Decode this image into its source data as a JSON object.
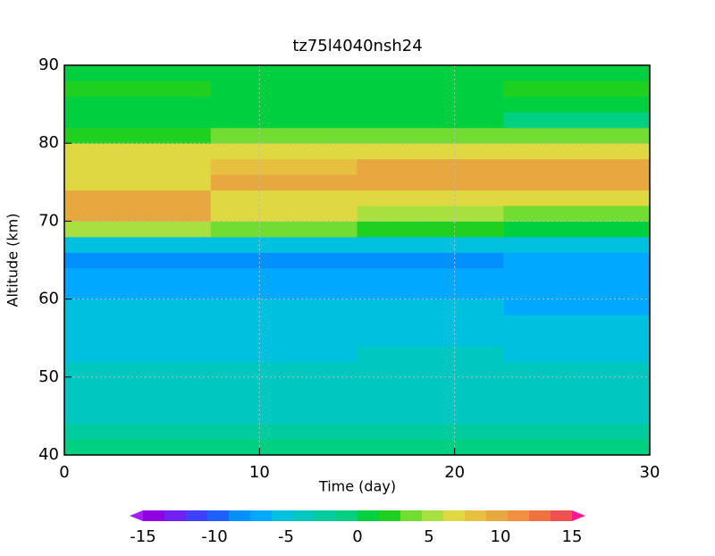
{
  "chart_data": {
    "type": "contour",
    "title": "tz75l4040nsh24",
    "xlabel": "Time (day)",
    "ylabel": "Altitude (km)",
    "xlim": [
      0,
      30
    ],
    "ylim": [
      40,
      90
    ],
    "xticks": [
      0,
      10,
      20,
      30
    ],
    "yticks": [
      40,
      50,
      60,
      70,
      80,
      90
    ],
    "grid": true,
    "x": [
      0,
      7.5,
      15,
      22.5,
      30
    ],
    "y": [
      40,
      42,
      44,
      46,
      48,
      50,
      52,
      54,
      56,
      58,
      60,
      62,
      64,
      66,
      68,
      70,
      72,
      74,
      76,
      78,
      80,
      82,
      84,
      86,
      88,
      90
    ],
    "z": [
      [
        -1,
        -1,
        -1,
        -1
      ],
      [
        -3,
        -3,
        -3,
        -3
      ],
      [
        -4,
        -4,
        -3.5,
        -3.5
      ],
      [
        -4,
        -4.5,
        -4,
        -4
      ],
      [
        -4.5,
        -4.5,
        -4,
        -4
      ],
      [
        -4.5,
        -4.5,
        -4.5,
        -4.5
      ],
      [
        -5,
        -5,
        -4.5,
        -5
      ],
      [
        -5.5,
        -5,
        -5,
        -5.5
      ],
      [
        -5.5,
        -5.5,
        -5.5,
        -5.5
      ],
      [
        -6,
        -6,
        -6,
        -6.5
      ],
      [
        -7,
        -6.5,
        -6.5,
        -7
      ],
      [
        -7,
        -7.5,
        -7.5,
        -7
      ],
      [
        -8,
        -9,
        -9,
        -7.5
      ],
      [
        -5,
        -5,
        -5,
        -5
      ],
      [
        5,
        3,
        2,
        1
      ],
      [
        9,
        7,
        5,
        4
      ],
      [
        9,
        7,
        7,
        7
      ],
      [
        7,
        9,
        9,
        9
      ],
      [
        7,
        8,
        9,
        9
      ],
      [
        6,
        6,
        7,
        7
      ],
      [
        2,
        3,
        3,
        3
      ],
      [
        0,
        0,
        0,
        -0.5
      ],
      [
        1,
        1,
        1,
        1
      ],
      [
        2,
        1,
        1,
        2
      ],
      [
        0,
        1,
        1,
        0
      ]
    ],
    "clim": [
      -15,
      15
    ],
    "cticks": [
      -15,
      -10,
      -5,
      0,
      5,
      10,
      15
    ],
    "colors": [
      "#a020f0",
      "#9000e0",
      "#7020f0",
      "#4040ff",
      "#2060ff",
      "#0090ff",
      "#00a8ff",
      "#00c0e0",
      "#00c8c0",
      "#00cca0",
      "#00d080",
      "#00d040",
      "#20d020",
      "#70dd30",
      "#a8e040",
      "#e0d840",
      "#e8c040",
      "#e8a840",
      "#f09040",
      "#f07040",
      "#f05050",
      "#ff1493"
    ]
  }
}
